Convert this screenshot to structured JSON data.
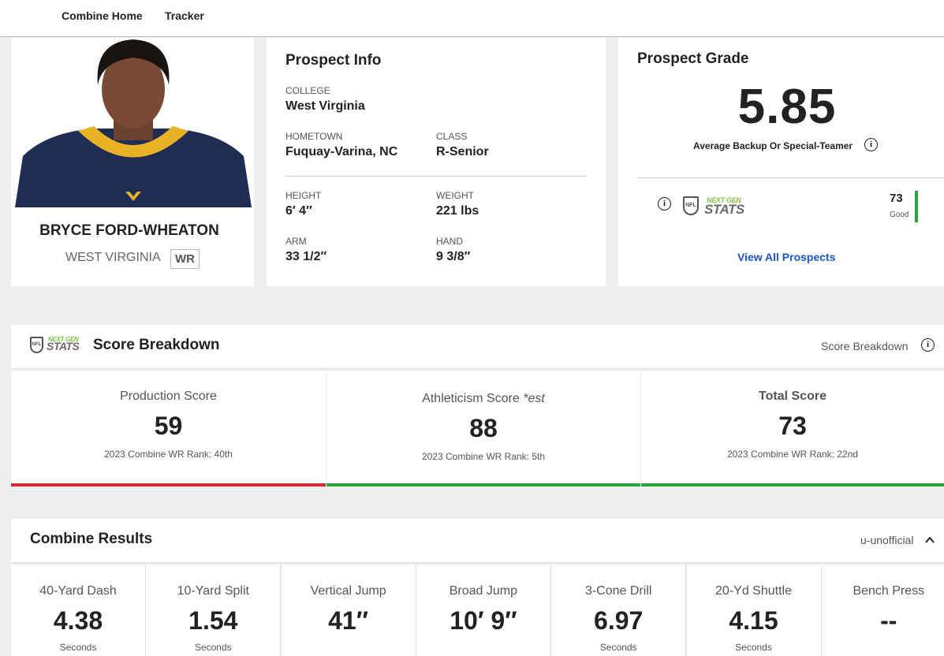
{
  "nav": {
    "links": [
      "Combine Home",
      "Tracker"
    ]
  },
  "player": {
    "name": "BRYCE FORD-WHEATON",
    "school": "WEST VIRGINIA",
    "position": "WR"
  },
  "prospect_info": {
    "title": "Prospect Info",
    "fields": [
      {
        "label": "COLLEGE",
        "value": "West Virginia"
      },
      {
        "label": "HOMETOWN",
        "value": "Fuquay-Varina, NC"
      },
      {
        "label": "CLASS",
        "value": "R-Senior"
      },
      {
        "label": "HEIGHT",
        "value": "6′ 4″"
      },
      {
        "label": "WEIGHT",
        "value": "221 lbs"
      },
      {
        "label": "ARM",
        "value": "33 1/2″"
      },
      {
        "label": "HAND",
        "value": "9 3/8″"
      }
    ]
  },
  "prospect_grade": {
    "title": "Prospect Grade",
    "grade": "5.85",
    "description": "Average Backup Or Special-Teamer",
    "ngs_logo": {
      "top": "NEXT GEN",
      "bottom": "STATS",
      "shield": "NFL"
    },
    "ngs_score": "73",
    "ngs_rating": "Good",
    "link": "View All Prospects"
  },
  "score_breakdown": {
    "logo": {
      "top": "NEXT GEN",
      "bottom": "STATS",
      "shield": "NFL"
    },
    "title": "Score Breakdown",
    "toggle": "Score Breakdown",
    "cards": [
      {
        "label": "Production Score",
        "score": "59",
        "rank": "2023 Combine WR Rank: 40th"
      },
      {
        "label": "Athleticism Score",
        "note": "*est",
        "score": "88",
        "rank": "2023 Combine WR Rank: 5th"
      },
      {
        "label": "Total Score",
        "score": "73",
        "rank": "2023 Combine WR Rank: 22nd"
      }
    ]
  },
  "combine_results": {
    "title": "Combine Results",
    "toggle": "u-unofficial",
    "drills": [
      {
        "name": "40-Yard Dash",
        "value": "4.38",
        "unit": "Seconds"
      },
      {
        "name": "10-Yard Split",
        "value": "1.54",
        "unit": "Seconds"
      },
      {
        "name": "Vertical Jump",
        "value": "41″"
      },
      {
        "name": "Broad Jump",
        "value": "10′ 9″"
      },
      {
        "name": "3-Cone Drill",
        "value": "6.97",
        "unit": "Seconds"
      },
      {
        "name": "20-Yd Shuttle",
        "value": "4.15",
        "unit": "Seconds"
      },
      {
        "name": "Bench Press",
        "value": "--"
      }
    ]
  }
}
